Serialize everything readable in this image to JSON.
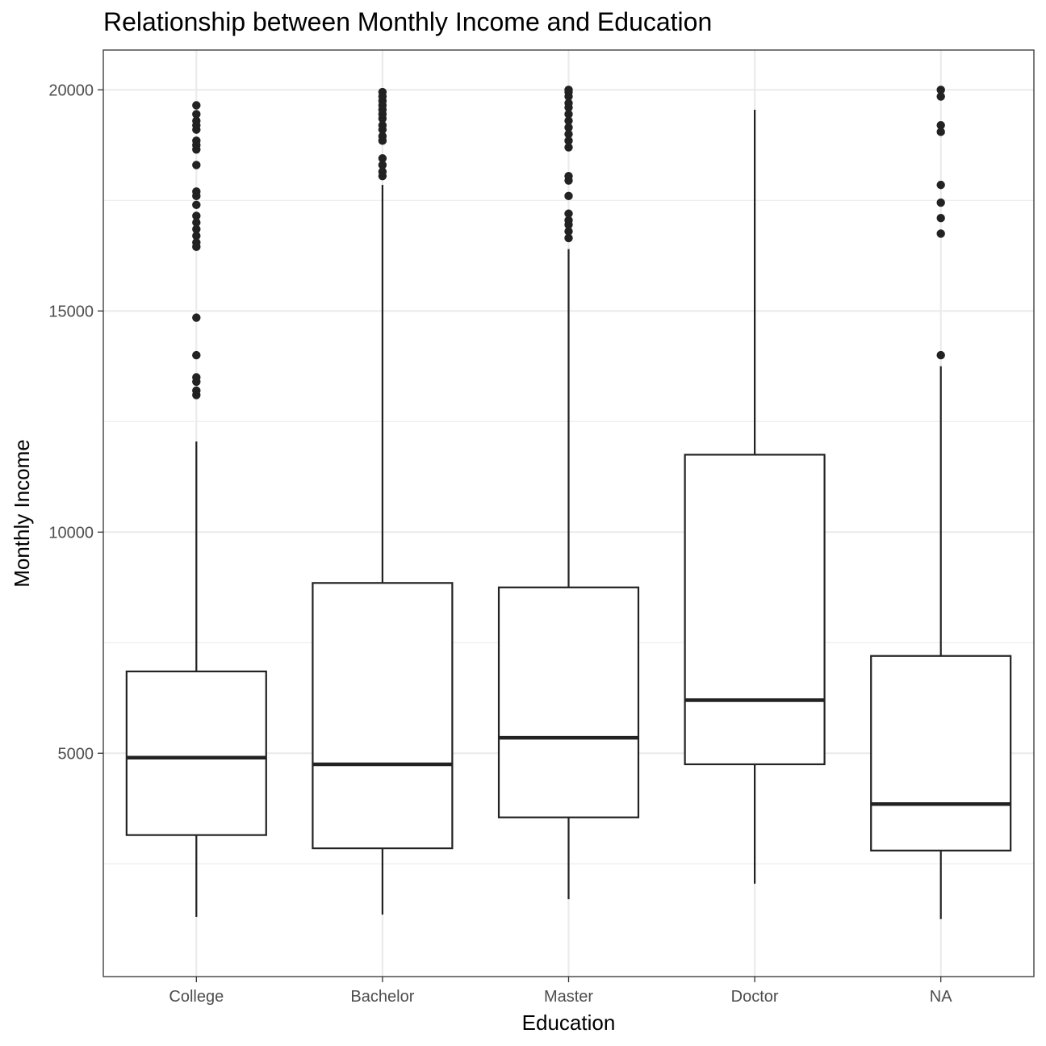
{
  "chart_data": {
    "type": "boxplot",
    "title": "Relationship between Monthly Income and Education",
    "xlabel": "Education",
    "ylabel": "Monthly Income",
    "categories": [
      "College",
      "Bachelor",
      "Master",
      "Doctor",
      "NA"
    ],
    "ylim": [
      -50,
      20900
    ],
    "yticks": [
      5000,
      10000,
      15000,
      20000
    ],
    "ytick_labels": [
      "5000",
      "10000",
      "15000",
      "20000"
    ],
    "grid": true,
    "legend": "none",
    "boxes": [
      {
        "category": "College",
        "whisker_low": 1300,
        "q1": 3150,
        "median": 4900,
        "q3": 6850,
        "whisker_high": 12050,
        "outliers": [
          13100,
          13200,
          13400,
          13500,
          14000,
          14850,
          16450,
          16550,
          16700,
          16850,
          17000,
          17150,
          17400,
          17600,
          17700,
          18300,
          18650,
          18750,
          18850,
          19100,
          19200,
          19300,
          19450,
          19650
        ]
      },
      {
        "category": "Bachelor",
        "whisker_low": 1350,
        "q1": 2850,
        "median": 4750,
        "q3": 8850,
        "whisker_high": 17850,
        "outliers": [
          18050,
          18150,
          18300,
          18450,
          18850,
          18950,
          19100,
          19200,
          19350,
          19450,
          19550,
          19650,
          19750,
          19850,
          19950
        ]
      },
      {
        "category": "Master",
        "whisker_low": 1700,
        "q1": 3550,
        "median": 5350,
        "q3": 8750,
        "whisker_high": 16400,
        "outliers": [
          16650,
          16800,
          16950,
          17050,
          17200,
          17600,
          17950,
          18050,
          18700,
          18850,
          19000,
          19150,
          19300,
          19450,
          19600,
          19700,
          19850,
          19950,
          20000
        ]
      },
      {
        "category": "Doctor",
        "whisker_low": 2050,
        "q1": 4750,
        "median": 6200,
        "q3": 11750,
        "whisker_high": 19550,
        "outliers": []
      },
      {
        "category": "NA",
        "whisker_low": 1250,
        "q1": 2800,
        "median": 3850,
        "q3": 7200,
        "whisker_high": 13750,
        "outliers": [
          14000,
          16750,
          17100,
          17450,
          17850,
          19050,
          19200,
          19850,
          20000
        ]
      }
    ]
  }
}
